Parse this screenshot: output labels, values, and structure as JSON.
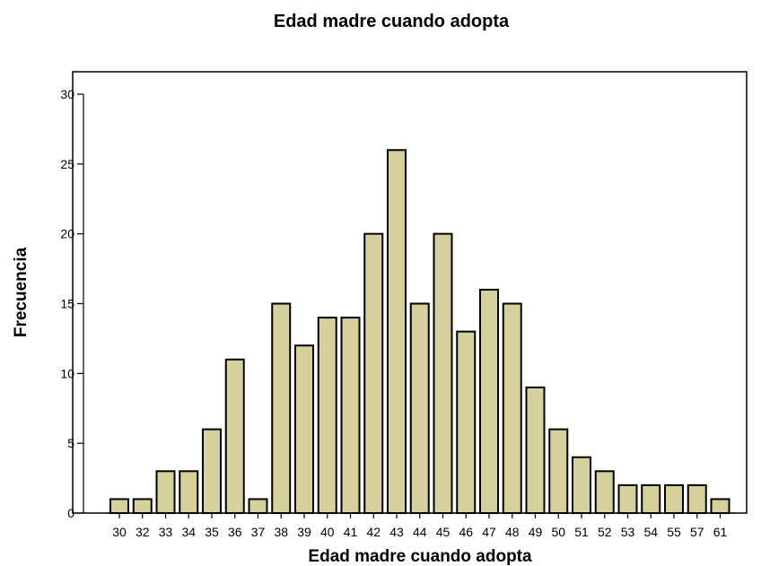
{
  "chart_data": {
    "type": "bar",
    "title": "Edad madre cuando adopta",
    "xlabel": "Edad madre cuando adopta",
    "ylabel": "Frecuencia",
    "categories": [
      "30",
      "32",
      "33",
      "34",
      "35",
      "36",
      "37",
      "38",
      "39",
      "40",
      "41",
      "42",
      "43",
      "44",
      "45",
      "46",
      "47",
      "48",
      "49",
      "50",
      "51",
      "52",
      "53",
      "54",
      "55",
      "57",
      "61"
    ],
    "values": [
      1,
      1,
      3,
      3,
      6,
      11,
      1,
      15,
      12,
      14,
      14,
      20,
      26,
      15,
      20,
      13,
      16,
      15,
      9,
      6,
      4,
      3,
      2,
      2,
      2,
      2,
      1
    ],
    "ylim": [
      0,
      30
    ],
    "yticks": [
      0,
      5,
      10,
      15,
      20,
      25,
      30
    ],
    "bar_color": "#d6d09c",
    "bar_edge_color": "#000000",
    "grid": false
  }
}
